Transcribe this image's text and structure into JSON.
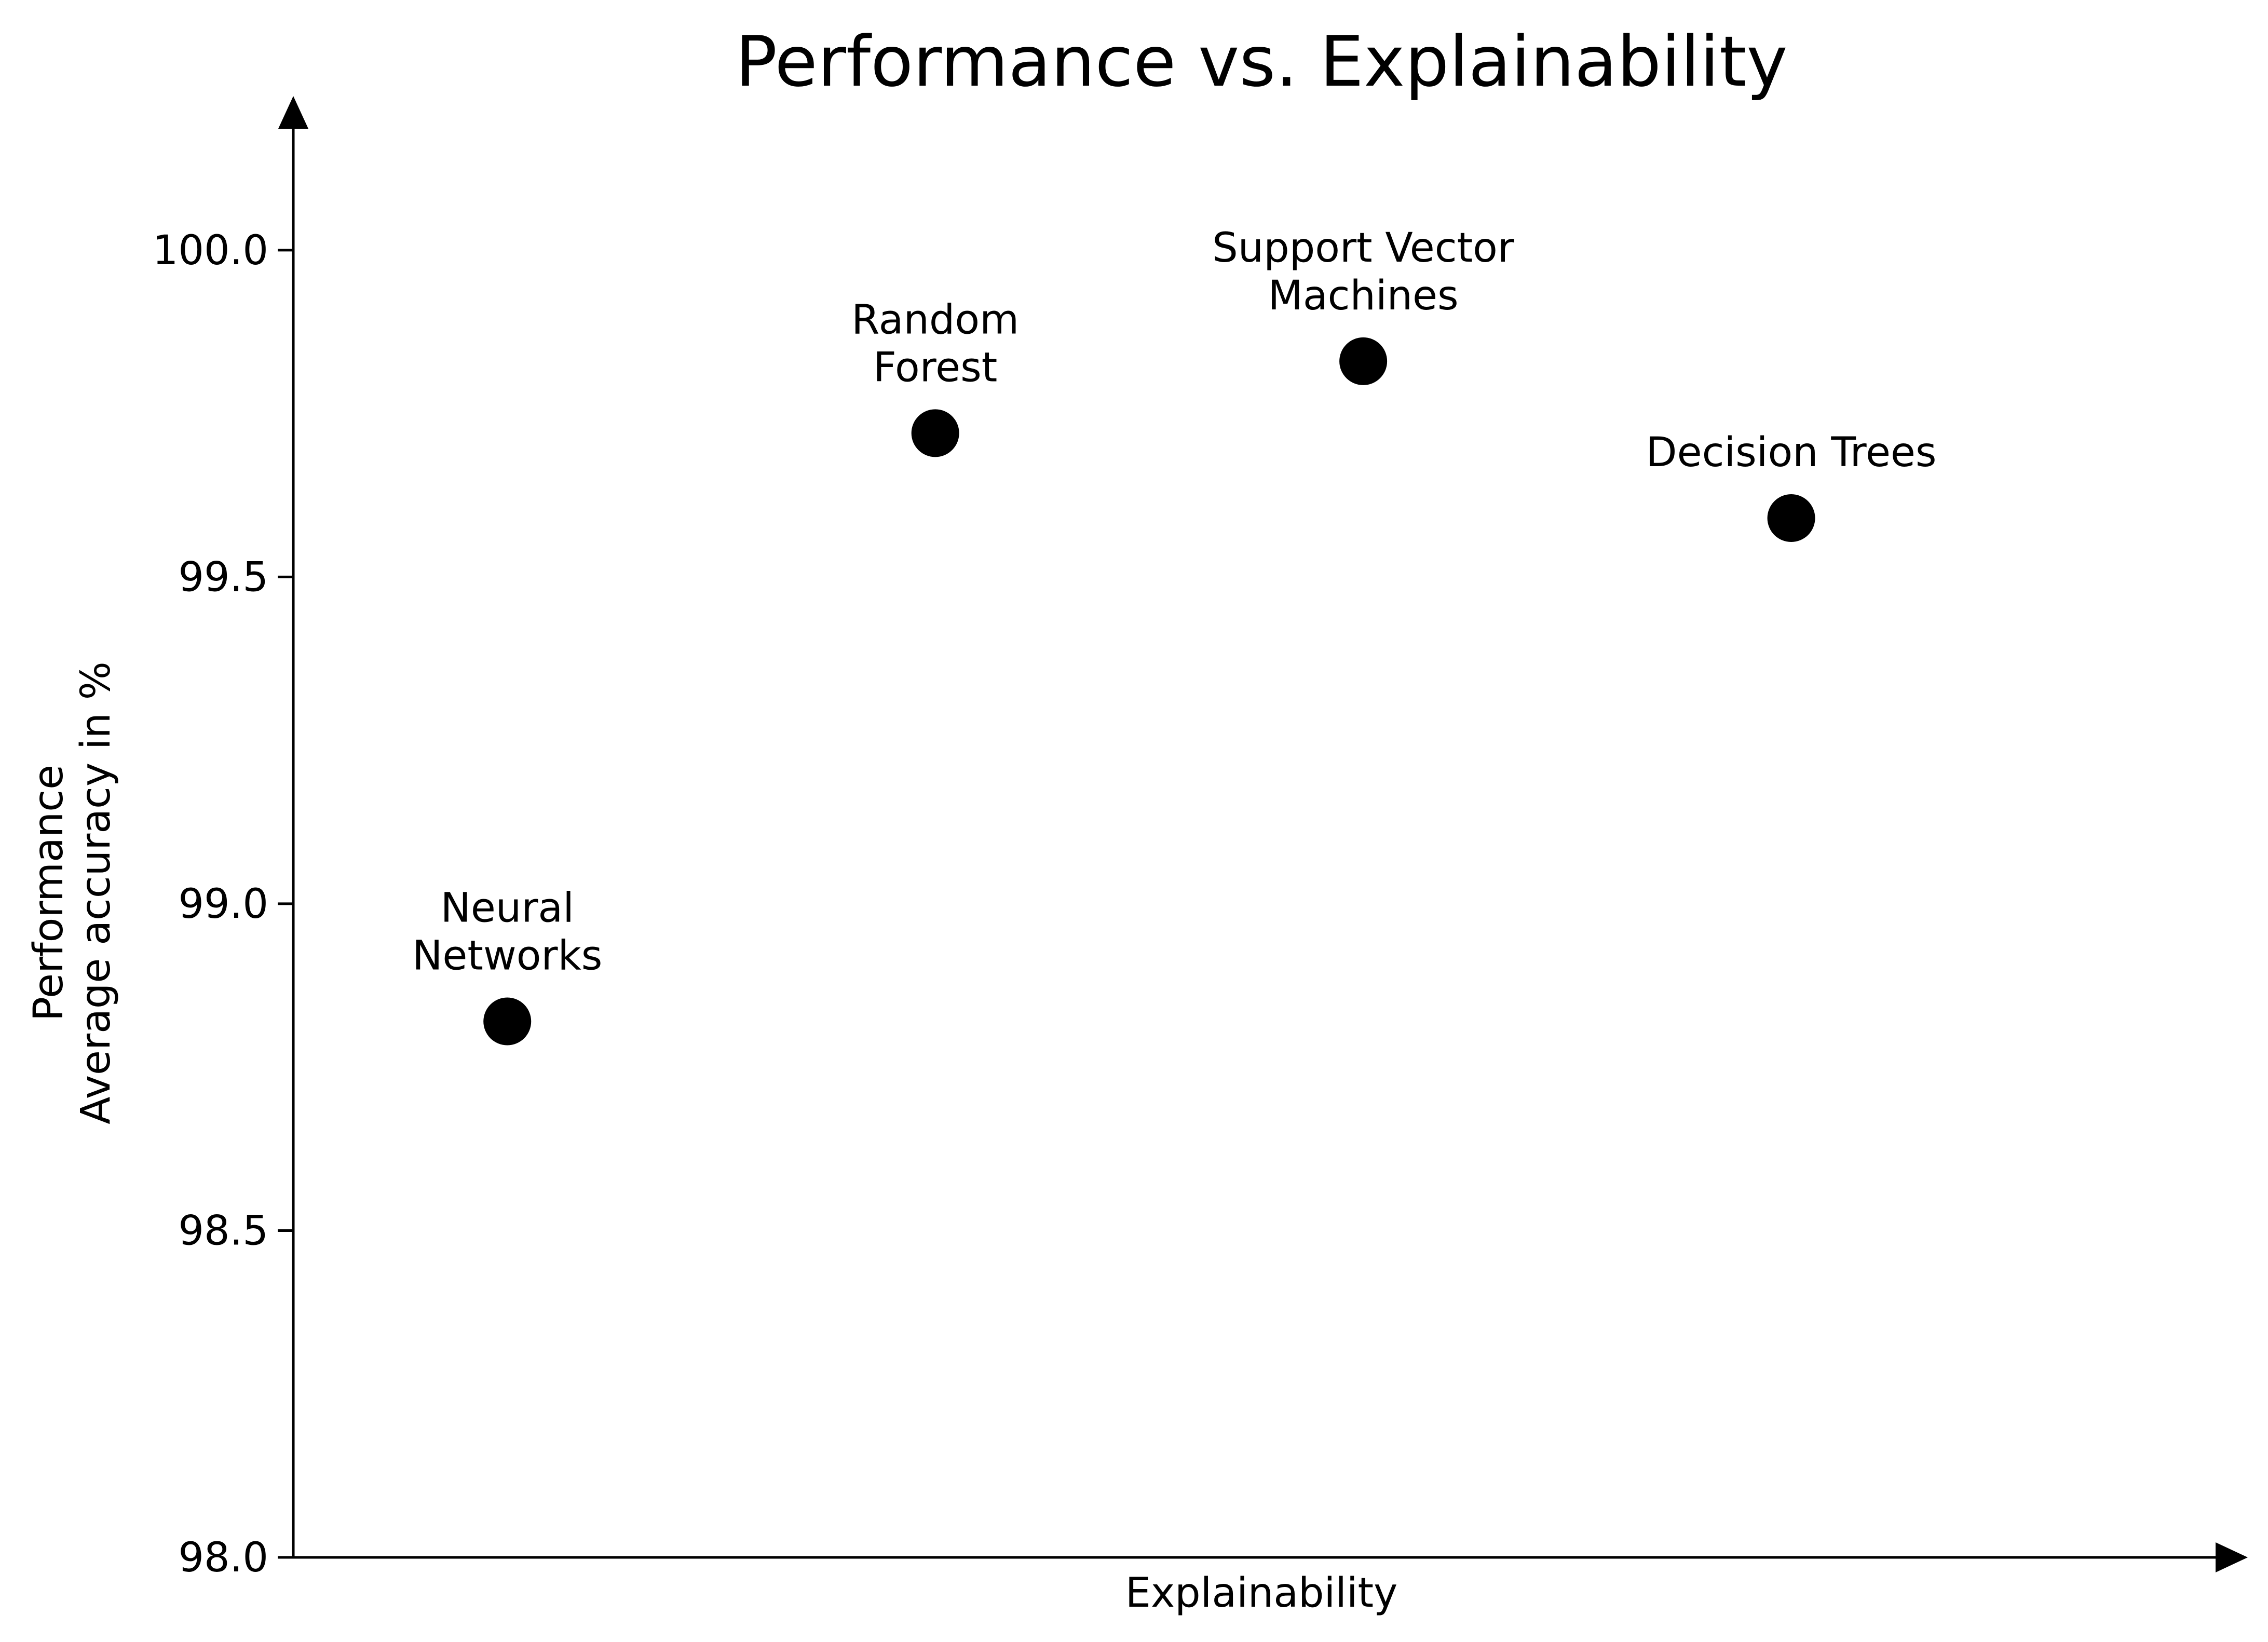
{
  "chart_data": {
    "type": "scatter",
    "title": "Performance vs. Explainability",
    "xlabel": "Explainability",
    "ylabel_lines": [
      "Performance",
      "Average accuracy in %"
    ],
    "ylim": [
      98.0,
      100.2
    ],
    "xlim": [
      0.5,
      5.0
    ],
    "yticks": [
      "98.0",
      "98.5",
      "99.0",
      "99.5",
      "100.0"
    ],
    "x_tick_labels_shown": false,
    "grid": false,
    "legend": "none",
    "marker_color": "#000000",
    "points": [
      {
        "label_lines": [
          "Neural",
          "Networks"
        ],
        "x": 1,
        "y": 98.82
      },
      {
        "label_lines": [
          "Random",
          "Forest"
        ],
        "x": 2,
        "y": 99.72
      },
      {
        "label_lines": [
          "Support Vector",
          "Machines"
        ],
        "x": 3,
        "y": 99.83
      },
      {
        "label_lines": [
          "Decision Trees"
        ],
        "x": 4,
        "y": 99.59
      }
    ]
  }
}
